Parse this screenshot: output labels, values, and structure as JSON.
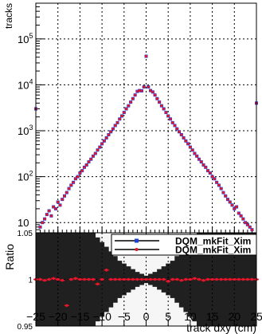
{
  "chart_data": [
    {
      "type": "scatter",
      "panel": "main",
      "xlabel": "",
      "ylabel": "tracks",
      "log_y": true,
      "xlim": [
        -25,
        25
      ],
      "ylim": [
        6,
        600000
      ],
      "grid": true,
      "x_ticks": [
        -25,
        -20,
        -15,
        -10,
        -5,
        0,
        5,
        10,
        15,
        20,
        25
      ],
      "y_ticks": [
        {
          "value": 10,
          "base": "10",
          "exp": ""
        },
        {
          "value": 100,
          "base": "10",
          "exp": "2"
        },
        {
          "value": 1000,
          "base": "10",
          "exp": "3"
        },
        {
          "value": 10000,
          "base": "10",
          "exp": "4"
        },
        {
          "value": 100000,
          "base": "10",
          "exp": "5"
        }
      ],
      "series": [
        {
          "color": "#1f3fd8",
          "marker": "square"
        },
        {
          "color": "#e8142a",
          "marker": "circle"
        }
      ],
      "x": [
        -25,
        -24,
        -23.5,
        -23,
        -22.5,
        -22,
        -21.5,
        -21,
        -20.5,
        -20,
        -19.5,
        -19,
        -18.5,
        -18,
        -17.5,
        -17,
        -16.5,
        -16,
        -15.5,
        -15,
        -14.5,
        -14,
        -13.5,
        -13,
        -12.5,
        -12,
        -11.5,
        -11,
        -10.5,
        -10,
        -9.5,
        -9,
        -8.5,
        -8,
        -7.5,
        -7,
        -6.5,
        -6,
        -5.5,
        -5,
        -4.5,
        -4,
        -3.5,
        -3,
        -2.5,
        -2,
        -1.5,
        -1,
        -0.5,
        0,
        0.5,
        1,
        1.5,
        2,
        2.5,
        3,
        3.5,
        4,
        4.5,
        5,
        5.5,
        6,
        6.5,
        7,
        7.5,
        8,
        8.5,
        9,
        9.5,
        10,
        10.5,
        11,
        11.5,
        12,
        12.5,
        13,
        13.5,
        14,
        14.5,
        15,
        15.5,
        16,
        16.5,
        17,
        17.5,
        18,
        18.5,
        19,
        19.5,
        20,
        20.5,
        21,
        21.5,
        22,
        22.5,
        23,
        23.5,
        24,
        25
      ],
      "y": [
        3000,
        8,
        10,
        12,
        15,
        18,
        14,
        22,
        20,
        28,
        24,
        32,
        38,
        45,
        55,
        65,
        75,
        90,
        100,
        120,
        135,
        160,
        180,
        210,
        240,
        280,
        320,
        380,
        440,
        520,
        600,
        700,
        820,
        950,
        1100,
        1300,
        1500,
        1800,
        2100,
        2500,
        3000,
        3500,
        4200,
        5000,
        6000,
        7200,
        7500,
        7400,
        9000,
        42000,
        9000,
        7500,
        7000,
        6000,
        5000,
        4200,
        3500,
        3000,
        2500,
        2100,
        1800,
        1500,
        1300,
        1100,
        950,
        820,
        700,
        600,
        520,
        440,
        380,
        320,
        280,
        240,
        210,
        180,
        160,
        135,
        120,
        100,
        90,
        75,
        65,
        55,
        45,
        38,
        32,
        28,
        24,
        20,
        22,
        16,
        14,
        12,
        10,
        9,
        8,
        7,
        4000
      ]
    },
    {
      "type": "scatter",
      "panel": "ratio",
      "xlabel": "track dxy (cm)",
      "ylabel": "Ratio",
      "xlim": [
        -25,
        25
      ],
      "ylim": [
        0.95,
        1.05
      ],
      "grid": true,
      "x_ticks": [
        -25,
        -20,
        -15,
        -10,
        -5,
        0,
        5,
        10,
        15,
        20,
        25
      ],
      "y_ticks": [
        0.95,
        1,
        1.05
      ],
      "y_tick_labels": [
        "0.95",
        "1",
        "1.05"
      ],
      "legend": {
        "placement": "top-right",
        "entries": [
          {
            "label": "DQM_mkFit_Xim",
            "color": "#1f3fd8",
            "marker": "square"
          },
          {
            "label": "DQM_mkFit_Xim",
            "color": "#e8142a",
            "marker": "circle"
          }
        ]
      },
      "x": [
        -25,
        -24,
        -23,
        -22,
        -21,
        -20,
        -19,
        -18,
        -17,
        -16,
        -15,
        -14,
        -13,
        -12,
        -11,
        -10,
        -9,
        -8,
        -7,
        -6,
        -5,
        -4,
        -3,
        -2,
        -1,
        0,
        1,
        2,
        3,
        4,
        5,
        6,
        7,
        8,
        9,
        10,
        11,
        12,
        13,
        14,
        15,
        16,
        17,
        18,
        19,
        20,
        21,
        22,
        23,
        24,
        25
      ],
      "y": [
        1.0,
        1.0,
        0.999,
        1.0,
        1.001,
        1.0,
        0.999,
        0.972,
        1.0,
        1.001,
        1.0,
        1.0,
        1.0,
        1.0,
        0.995,
        1.0,
        1.01,
        1.0,
        1.0,
        1.0,
        1.0,
        1.0,
        1.0,
        1.0,
        1.0,
        1.0,
        1.0,
        1.0,
        1.0,
        1.0,
        0.998,
        1.0,
        1.0,
        0.999,
        1.0,
        1.0,
        1.001,
        1.0,
        0.999,
        1.0,
        1.0,
        1.0,
        1.0,
        1.0,
        1.0,
        1.0,
        1.0,
        1.0,
        1.0,
        1.0,
        1.0
      ],
      "err": [
        0.06,
        0.06,
        0.06,
        0.06,
        0.06,
        0.06,
        0.06,
        0.06,
        0.06,
        0.06,
        0.06,
        0.06,
        0.06,
        0.05,
        0.045,
        0.04,
        0.035,
        0.03,
        0.025,
        0.02,
        0.017,
        0.014,
        0.011,
        0.008,
        0.006,
        0.004,
        0.006,
        0.008,
        0.011,
        0.014,
        0.017,
        0.02,
        0.025,
        0.03,
        0.035,
        0.04,
        0.045,
        0.05,
        0.06,
        0.06,
        0.06,
        0.06,
        0.06,
        0.06,
        0.06,
        0.06,
        0.06,
        0.06,
        0.06,
        0.06,
        0.06
      ]
    }
  ]
}
